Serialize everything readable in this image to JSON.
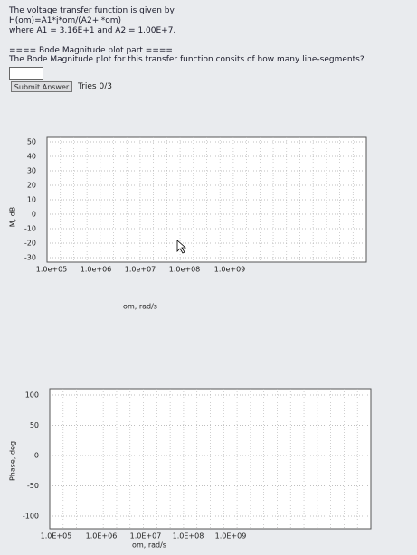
{
  "problem": {
    "lines": [
      "The voltage transfer function is given by",
      "H(om)=A1*j*om/(A2+j*om)",
      "where A1 = 3.16E+1 and A2 = 1.00E+7."
    ],
    "part_heading": "==== Bode Magnitude plot part ====",
    "question": "The Bode Magnitude plot for this transfer function consits of how many line-segments?",
    "submit_button": "Submit Answer",
    "tries": "Tries 0/3"
  },
  "plots": [
    {
      "ylabel": "M, dB",
      "xlabel": "om, rad/s",
      "yticks": [
        50,
        40,
        30,
        20,
        10,
        0,
        -10,
        -20,
        -30
      ],
      "xticks": [
        "1.0e+05",
        "1.0e+06",
        "1.0e+07",
        "1.0e+08",
        "1.0e+09"
      ]
    },
    {
      "ylabel": "Phase, deg",
      "xlabel": "om, rad/s",
      "yticks": [
        100,
        50,
        0,
        -50,
        -100
      ],
      "xticks": [
        "1.0E+05",
        "1.0E+06",
        "1.0E+07",
        "1.0E+08",
        "1.0E+09"
      ]
    }
  ]
}
